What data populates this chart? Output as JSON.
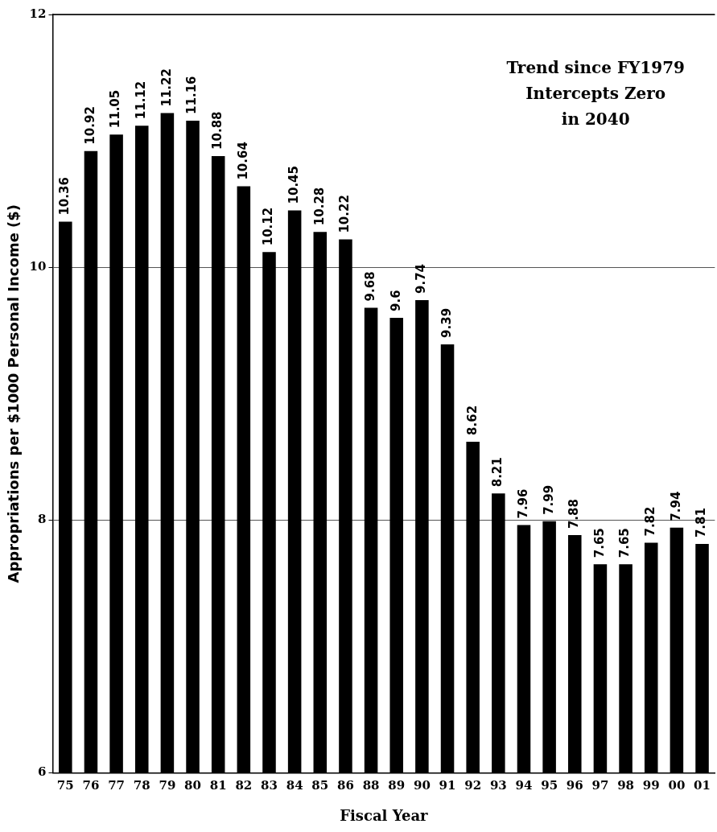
{
  "chart_data": {
    "type": "bar",
    "xlabel": "Fiscal Year",
    "ylabel": "Appropriations per $1000 Personal Income ($)",
    "categories": [
      "75",
      "76",
      "77",
      "78",
      "79",
      "80",
      "81",
      "82",
      "83",
      "84",
      "85",
      "86",
      "88",
      "89",
      "90",
      "91",
      "92",
      "93",
      "94",
      "95",
      "96",
      "97",
      "98",
      "99",
      "00",
      "01"
    ],
    "values": [
      10.36,
      10.92,
      11.05,
      11.12,
      11.22,
      11.16,
      10.88,
      10.64,
      10.12,
      10.45,
      10.28,
      10.22,
      9.68,
      9.6,
      9.74,
      9.39,
      8.62,
      8.21,
      7.96,
      7.99,
      7.88,
      7.65,
      7.65,
      7.82,
      7.94,
      7.81
    ],
    "color": "#000000",
    "ylim": [
      6,
      12
    ],
    "yticks": [
      6,
      8,
      10,
      12
    ],
    "grid": "y",
    "data_labels": true,
    "legend": false,
    "annotations": [
      "Trend since FY1979\nIntercepts Zero\nin 2040"
    ]
  }
}
